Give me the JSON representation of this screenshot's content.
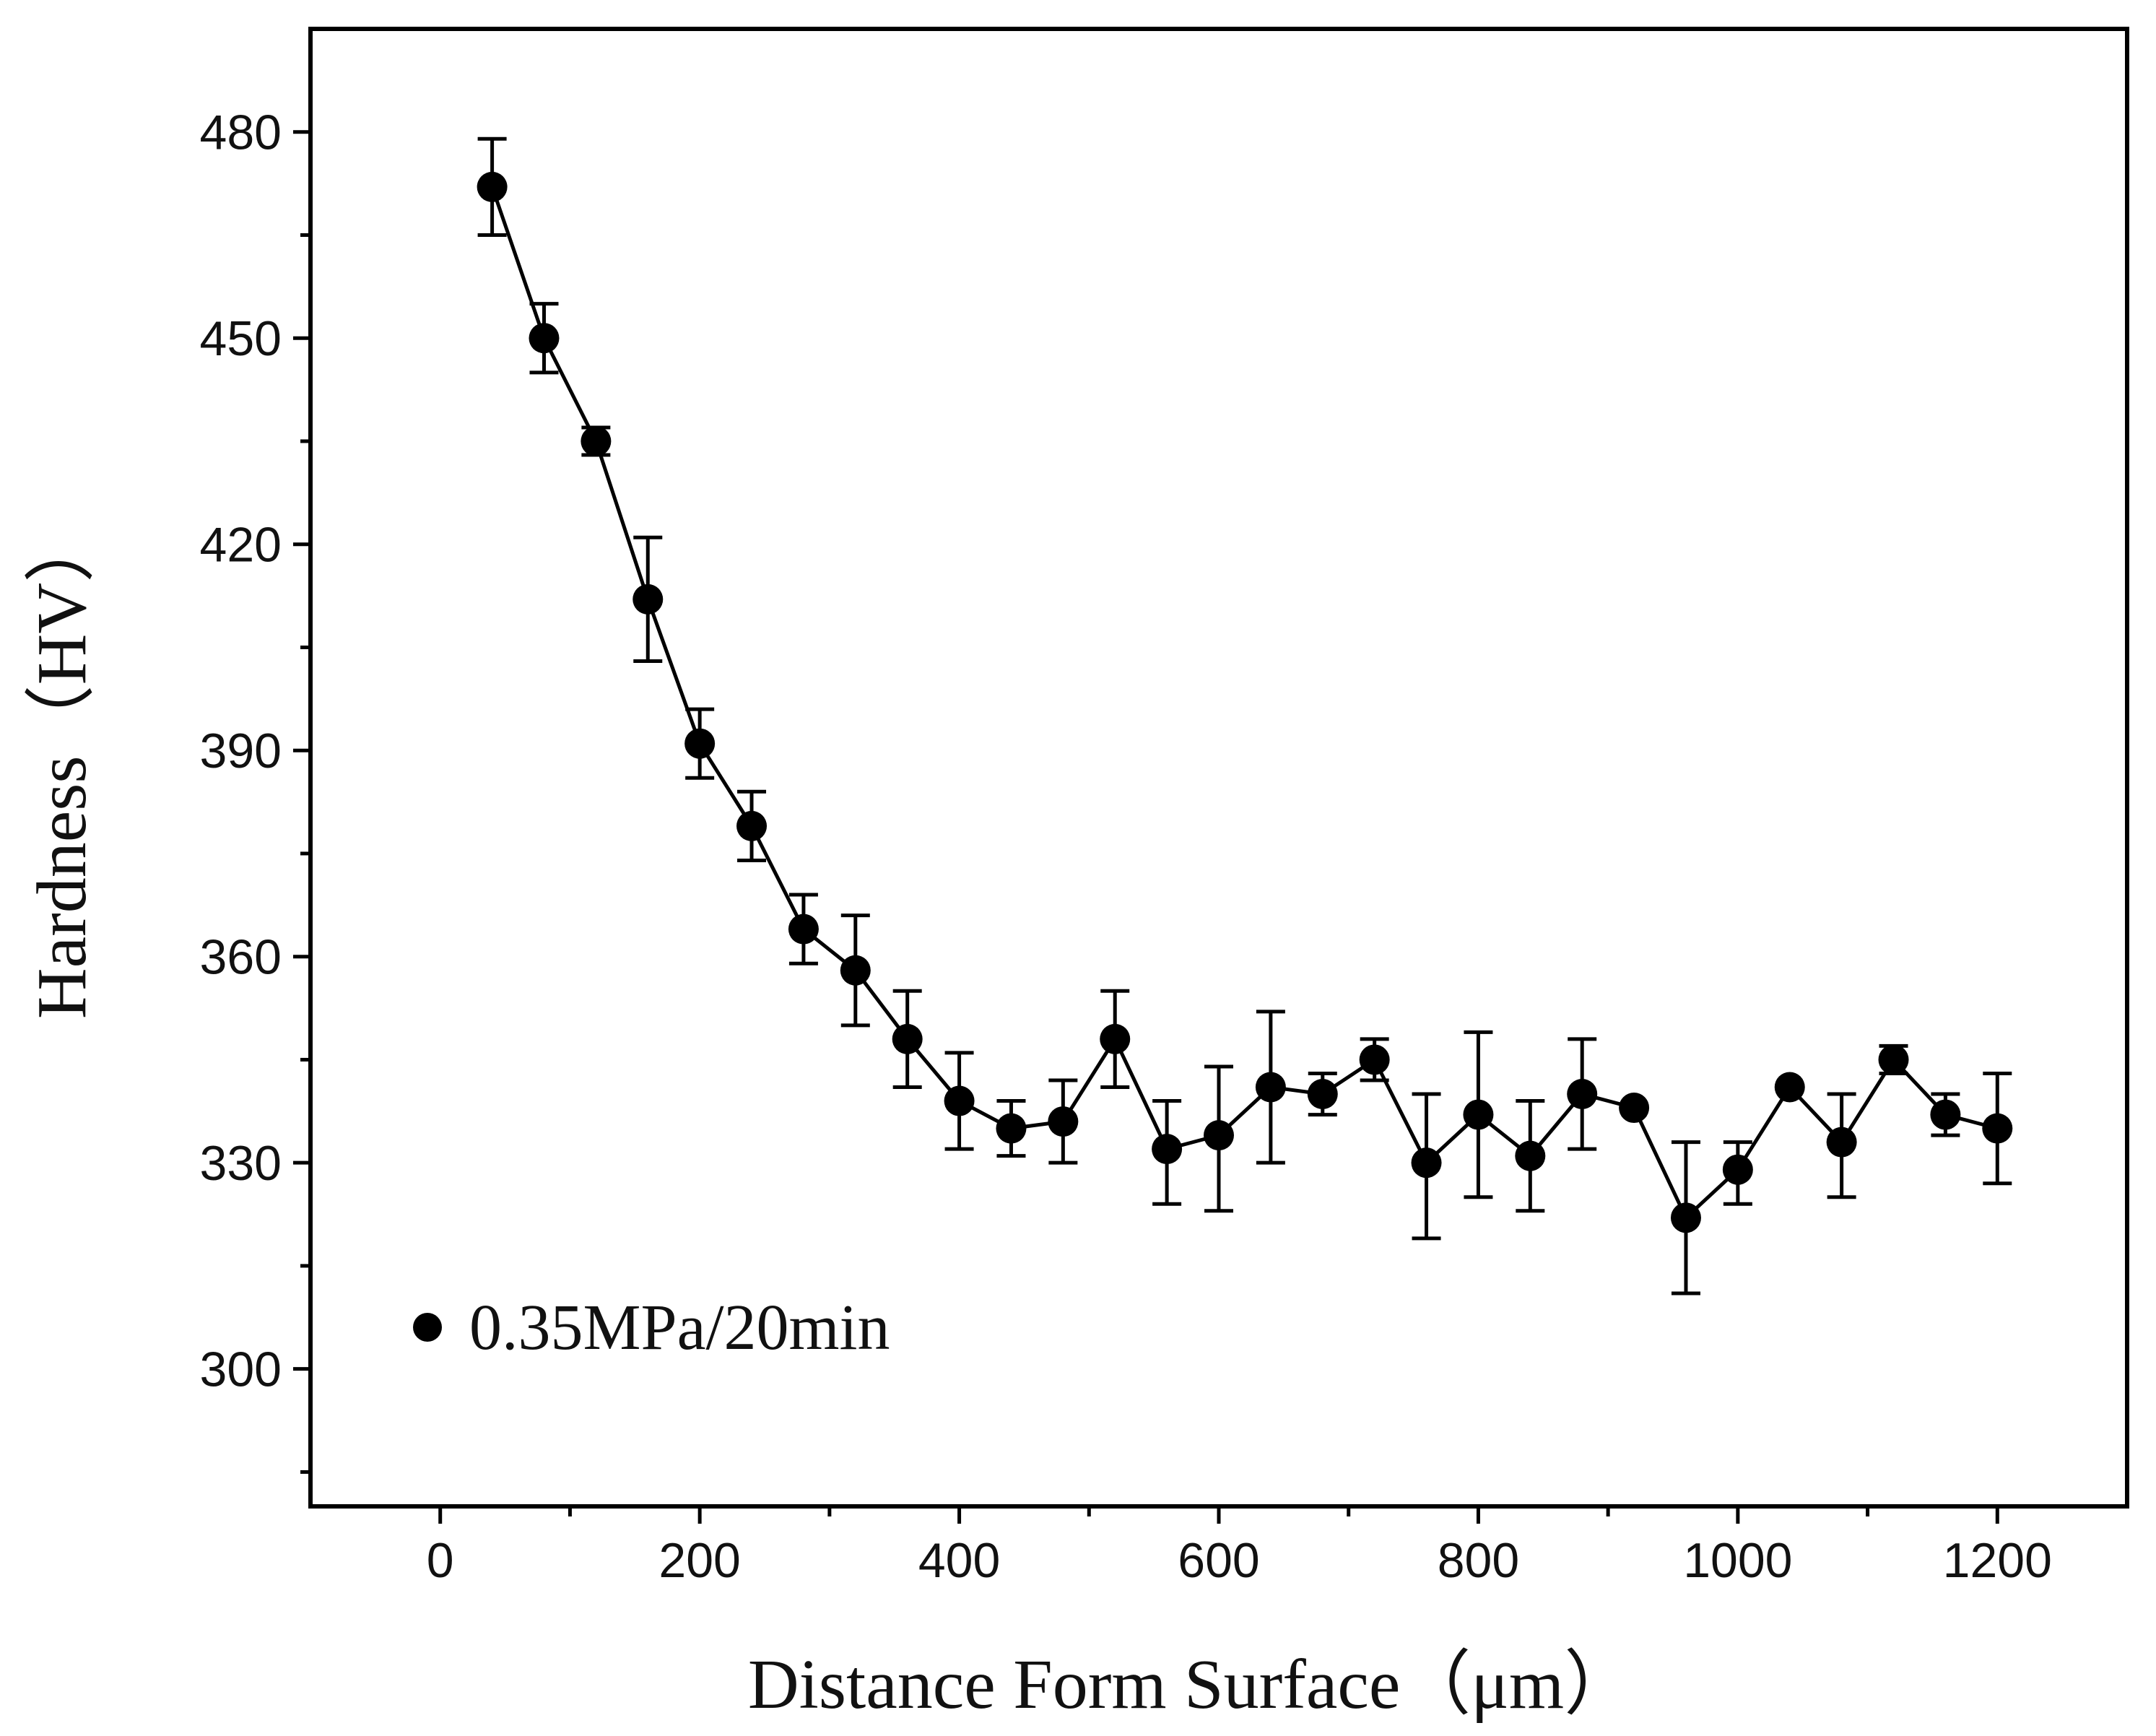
{
  "chart_data": {
    "type": "line",
    "title": "",
    "xlabel": "Distance Form Surface（μm）",
    "ylabel": "Hardness（HV）",
    "xlim": [
      -100,
      1300
    ],
    "ylim": [
      280,
      495
    ],
    "xticks": [
      0,
      200,
      400,
      600,
      800,
      1000,
      1200
    ],
    "yticks": [
      300,
      330,
      360,
      390,
      420,
      450,
      480
    ],
    "x_minor_step": 100,
    "y_minor_step": 15,
    "grid": false,
    "legend_position": "bottom-left",
    "series": [
      {
        "name": "0.35MPa/20min",
        "marker": "circle",
        "color": "#000000",
        "x": [
          40,
          80,
          120,
          160,
          200,
          240,
          280,
          320,
          360,
          400,
          440,
          480,
          520,
          560,
          600,
          640,
          680,
          720,
          760,
          800,
          840,
          880,
          920,
          960,
          1000,
          1040,
          1080,
          1120,
          1160,
          1200
        ],
        "y": [
          472,
          450,
          435,
          412,
          391,
          379,
          364,
          358,
          348,
          339,
          335,
          336,
          348,
          332,
          334,
          341,
          340,
          345,
          330,
          337,
          331,
          340,
          338,
          322,
          329,
          341,
          333,
          345,
          337,
          335
        ],
        "err_plus": [
          7,
          5,
          2,
          9,
          5,
          5,
          5,
          8,
          7,
          7,
          4,
          6,
          7,
          7,
          10,
          11,
          3,
          3,
          10,
          12,
          8,
          8,
          0,
          11,
          4,
          0,
          7,
          2,
          3,
          8
        ],
        "err_minus": [
          7,
          5,
          2,
          9,
          5,
          5,
          5,
          8,
          7,
          7,
          4,
          6,
          7,
          8,
          11,
          11,
          3,
          3,
          11,
          12,
          8,
          8,
          0,
          11,
          5,
          0,
          8,
          2,
          3,
          8
        ]
      }
    ]
  }
}
